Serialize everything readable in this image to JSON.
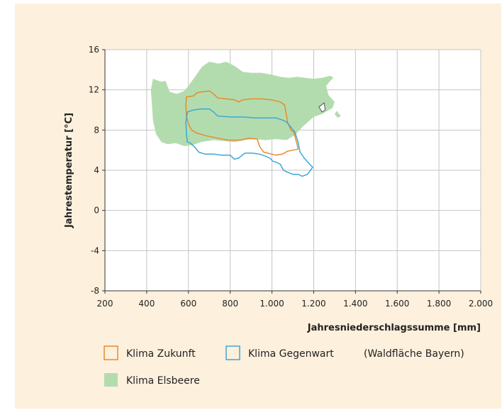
{
  "chart_data": {
    "type": "area",
    "ylabel": "Jahrestemperatur [°C]",
    "xlabel": "Jahresniederschlagssumme [mm]",
    "xlim": [
      200,
      2000
    ],
    "ylim": [
      -8,
      16
    ],
    "x_ticks": [
      200,
      400,
      600,
      800,
      1000,
      1200,
      1400,
      1600,
      1800,
      2000
    ],
    "x_tick_labels": [
      "200",
      "400",
      "600",
      "800",
      "1.000",
      "1.200",
      "1.400",
      "1.600",
      "1.800",
      "2.000"
    ],
    "y_ticks": [
      -8,
      -4,
      0,
      4,
      8,
      12,
      16
    ],
    "y_tick_labels": [
      "-8",
      "-4",
      "0",
      "4",
      "8",
      "12",
      "16"
    ],
    "grid": true,
    "legend_placement": "bottom",
    "legend_note": "(Waldfläche Bayern)",
    "series": [
      {
        "name": "Klima Elsbeere",
        "kind": "filled",
        "color": "#b3dcae",
        "points": [
          [
            430,
            13.1
          ],
          [
            470,
            12.8
          ],
          [
            490,
            12.9
          ],
          [
            510,
            11.8
          ],
          [
            545,
            11.6
          ],
          [
            580,
            11.9
          ],
          [
            600,
            12.4
          ],
          [
            635,
            13.4
          ],
          [
            665,
            14.3
          ],
          [
            700,
            14.8
          ],
          [
            745,
            14.6
          ],
          [
            780,
            14.8
          ],
          [
            820,
            14.4
          ],
          [
            860,
            13.8
          ],
          [
            900,
            13.7
          ],
          [
            950,
            13.7
          ],
          [
            1000,
            13.5
          ],
          [
            1040,
            13.3
          ],
          [
            1080,
            13.2
          ],
          [
            1120,
            13.3
          ],
          [
            1160,
            13.2
          ],
          [
            1200,
            13.1
          ],
          [
            1240,
            13.2
          ],
          [
            1280,
            13.4
          ],
          [
            1295,
            13.2
          ],
          [
            1280,
            12.9
          ],
          [
            1260,
            12.4
          ],
          [
            1270,
            11.5
          ],
          [
            1300,
            10.8
          ],
          [
            1290,
            10.2
          ],
          [
            1240,
            9.6
          ],
          [
            1200,
            9.3
          ],
          [
            1150,
            8.4
          ],
          [
            1110,
            7.5
          ],
          [
            1070,
            7.0
          ],
          [
            1020,
            7.1
          ],
          [
            970,
            7.0
          ],
          [
            920,
            7.1
          ],
          [
            870,
            7.0
          ],
          [
            820,
            6.8
          ],
          [
            770,
            6.9
          ],
          [
            720,
            7.0
          ],
          [
            660,
            6.8
          ],
          [
            620,
            6.5
          ],
          [
            580,
            6.4
          ],
          [
            540,
            6.7
          ],
          [
            500,
            6.6
          ],
          [
            470,
            6.8
          ],
          [
            445,
            7.6
          ],
          [
            430,
            9.0
          ],
          [
            425,
            10.5
          ],
          [
            420,
            12.0
          ]
        ]
      },
      {
        "name": "",
        "kind": "filled",
        "color": "#b3dcae",
        "points": [
          [
            1310,
            9.9
          ],
          [
            1330,
            9.4
          ],
          [
            1315,
            9.2
          ],
          [
            1300,
            9.6
          ]
        ]
      },
      {
        "name": "Klima Zukunft",
        "kind": "outline",
        "color": "#e98a2b",
        "points": [
          [
            590,
            11.3
          ],
          [
            625,
            11.4
          ],
          [
            640,
            11.7
          ],
          [
            665,
            11.8
          ],
          [
            700,
            11.9
          ],
          [
            720,
            11.6
          ],
          [
            740,
            11.2
          ],
          [
            780,
            11.1
          ],
          [
            820,
            11.0
          ],
          [
            840,
            10.8
          ],
          [
            860,
            11.0
          ],
          [
            900,
            11.1
          ],
          [
            950,
            11.1
          ],
          [
            1000,
            11.0
          ],
          [
            1040,
            10.8
          ],
          [
            1060,
            10.5
          ],
          [
            1065,
            10.0
          ],
          [
            1075,
            8.8
          ],
          [
            1090,
            8.0
          ],
          [
            1105,
            7.8
          ],
          [
            1110,
            7.4
          ],
          [
            1120,
            6.6
          ],
          [
            1125,
            6.1
          ],
          [
            1100,
            6.0
          ],
          [
            1075,
            5.9
          ],
          [
            1050,
            5.6
          ],
          [
            1020,
            5.5
          ],
          [
            980,
            5.7
          ],
          [
            960,
            5.8
          ],
          [
            940,
            6.4
          ],
          [
            930,
            7.1
          ],
          [
            890,
            7.2
          ],
          [
            850,
            7.0
          ],
          [
            790,
            7.0
          ],
          [
            740,
            7.2
          ],
          [
            690,
            7.4
          ],
          [
            640,
            7.7
          ],
          [
            615,
            8.0
          ],
          [
            600,
            8.6
          ],
          [
            590,
            9.4
          ],
          [
            588,
            10.5
          ]
        ]
      },
      {
        "name": "Klima Gegenwart",
        "kind": "outline",
        "color": "#3ea7d6",
        "points": [
          [
            595,
            9.8
          ],
          [
            625,
            10.0
          ],
          [
            660,
            10.1
          ],
          [
            700,
            10.1
          ],
          [
            720,
            9.8
          ],
          [
            740,
            9.4
          ],
          [
            800,
            9.3
          ],
          [
            860,
            9.3
          ],
          [
            920,
            9.2
          ],
          [
            980,
            9.2
          ],
          [
            1020,
            9.2
          ],
          [
            1050,
            9.0
          ],
          [
            1070,
            8.8
          ],
          [
            1090,
            8.3
          ],
          [
            1110,
            7.8
          ],
          [
            1125,
            6.8
          ],
          [
            1135,
            5.8
          ],
          [
            1155,
            5.2
          ],
          [
            1180,
            4.6
          ],
          [
            1195,
            4.3
          ],
          [
            1185,
            4.0
          ],
          [
            1170,
            3.6
          ],
          [
            1145,
            3.4
          ],
          [
            1125,
            3.6
          ],
          [
            1100,
            3.6
          ],
          [
            1075,
            3.8
          ],
          [
            1055,
            4.0
          ],
          [
            1040,
            4.6
          ],
          [
            1020,
            4.8
          ],
          [
            1005,
            4.9
          ],
          [
            990,
            5.2
          ],
          [
            970,
            5.4
          ],
          [
            940,
            5.6
          ],
          [
            905,
            5.7
          ],
          [
            870,
            5.7
          ],
          [
            840,
            5.2
          ],
          [
            820,
            5.1
          ],
          [
            800,
            5.5
          ],
          [
            760,
            5.5
          ],
          [
            720,
            5.6
          ],
          [
            680,
            5.6
          ],
          [
            650,
            5.8
          ],
          [
            630,
            6.3
          ],
          [
            610,
            6.7
          ],
          [
            595,
            6.8
          ],
          [
            590,
            7.8
          ],
          [
            588,
            8.8
          ]
        ]
      },
      {
        "name": "",
        "kind": "marker",
        "color": "#ffffff",
        "points": [
          [
            1225,
            10.3
          ],
          [
            1250,
            10.7
          ],
          [
            1255,
            10.0
          ],
          [
            1240,
            9.8
          ]
        ]
      }
    ]
  }
}
